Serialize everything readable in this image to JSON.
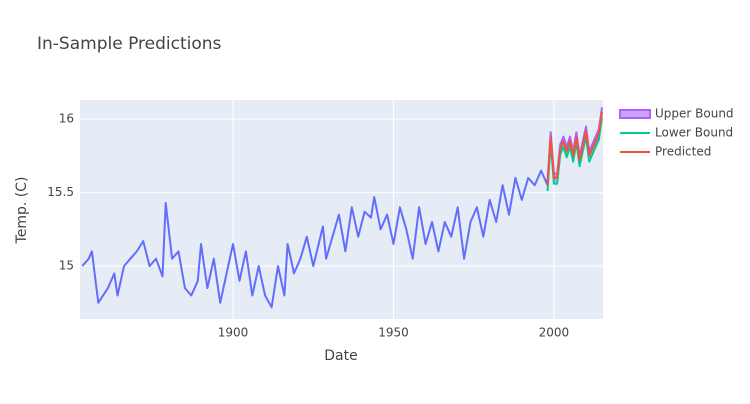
{
  "chart_data": {
    "type": "line",
    "title": "In-Sample Predictions",
    "x_label": "Date",
    "y_label": "Temp. (C)",
    "xlim": [
      1852.3,
      2015.3
    ],
    "ylim": [
      14.64,
      16.13
    ],
    "xticks": [
      1900,
      1950,
      2000
    ],
    "yticks": [
      15,
      15.5,
      16
    ],
    "grid": true,
    "legend": "right",
    "series": [
      {
        "color": "#636efa",
        "x": [
          1853,
          1855,
          1856,
          1858,
          1861,
          1863,
          1864,
          1866,
          1868,
          1870,
          1872,
          1874,
          1876,
          1878,
          1879,
          1881,
          1883,
          1885,
          1887,
          1889,
          1890,
          1892,
          1894,
          1896,
          1898,
          1900,
          1902,
          1904,
          1906,
          1908,
          1910,
          1912,
          1914,
          1916,
          1917,
          1919,
          1921,
          1923,
          1925,
          1928,
          1929,
          1931,
          1933,
          1935,
          1937,
          1939,
          1941,
          1943,
          1944,
          1946,
          1948,
          1950,
          1952,
          1954,
          1956,
          1958,
          1960,
          1962,
          1964,
          1966,
          1968,
          1970,
          1972,
          1974,
          1976,
          1978,
          1980,
          1982,
          1984,
          1986,
          1988,
          1990,
          1992,
          1994,
          1996,
          1998,
          1999,
          2000,
          2001,
          2002,
          2003,
          2004,
          2005,
          2006,
          2007,
          2008,
          2009,
          2010,
          2011,
          2012,
          2013,
          2014,
          2015
        ],
        "values": [
          15.0,
          15.05,
          15.1,
          14.75,
          14.85,
          14.95,
          14.8,
          15.0,
          15.05,
          15.1,
          15.17,
          15.0,
          15.05,
          14.93,
          15.43,
          15.05,
          15.1,
          14.85,
          14.8,
          14.9,
          15.15,
          14.85,
          15.05,
          14.75,
          14.95,
          15.15,
          14.9,
          15.1,
          14.8,
          15.0,
          14.8,
          14.72,
          15.0,
          14.8,
          15.15,
          14.95,
          15.05,
          15.2,
          15.0,
          15.27,
          15.05,
          15.2,
          15.35,
          15.1,
          15.4,
          15.2,
          15.37,
          15.33,
          15.47,
          15.25,
          15.35,
          15.15,
          15.4,
          15.25,
          15.05,
          15.4,
          15.15,
          15.3,
          15.1,
          15.3,
          15.2,
          15.4,
          15.05,
          15.3,
          15.4,
          15.2,
          15.45,
          15.3,
          15.55,
          15.35,
          15.6,
          15.45,
          15.6,
          15.55,
          15.65,
          15.55,
          15.88,
          15.6,
          15.6,
          15.8,
          15.85,
          15.78,
          15.85,
          15.75,
          15.88,
          15.72,
          15.82,
          15.92,
          15.75,
          15.8,
          15.85,
          15.9,
          16.05
        ]
      },
      {
        "name": "Upper Bound",
        "color": "#ab63fa",
        "x": [
          1998,
          1999,
          2000,
          2001,
          2002,
          2003,
          2004,
          2005,
          2006,
          2007,
          2008,
          2009,
          2010,
          2011,
          2012,
          2013,
          2014,
          2015
        ],
        "values": [
          15.58,
          15.91,
          15.63,
          15.63,
          15.83,
          15.88,
          15.81,
          15.88,
          15.78,
          15.91,
          15.75,
          15.85,
          15.95,
          15.78,
          15.83,
          15.88,
          15.93,
          16.08
        ]
      },
      {
        "name": "Lower Bound",
        "color": "#00cc96",
        "x": [
          1998,
          1999,
          2000,
          2001,
          2002,
          2003,
          2004,
          2005,
          2006,
          2007,
          2008,
          2009,
          2010,
          2011,
          2012,
          2013,
          2014,
          2015
        ],
        "values": [
          15.51,
          15.84,
          15.56,
          15.56,
          15.76,
          15.81,
          15.74,
          15.81,
          15.71,
          15.84,
          15.68,
          15.78,
          15.88,
          15.71,
          15.76,
          15.81,
          15.86,
          16.01
        ]
      },
      {
        "name": "Predicted",
        "color": "#ef553b",
        "x": [
          1998,
          1999,
          2000,
          2001,
          2002,
          2003,
          2004,
          2005,
          2006,
          2007,
          2008,
          2009,
          2010,
          2011,
          2012,
          2013,
          2014,
          2015
        ],
        "values": [
          15.55,
          15.88,
          15.6,
          15.6,
          15.8,
          15.85,
          15.78,
          15.85,
          15.75,
          15.88,
          15.72,
          15.82,
          15.92,
          15.75,
          15.8,
          15.85,
          15.9,
          16.05
        ]
      }
    ]
  }
}
